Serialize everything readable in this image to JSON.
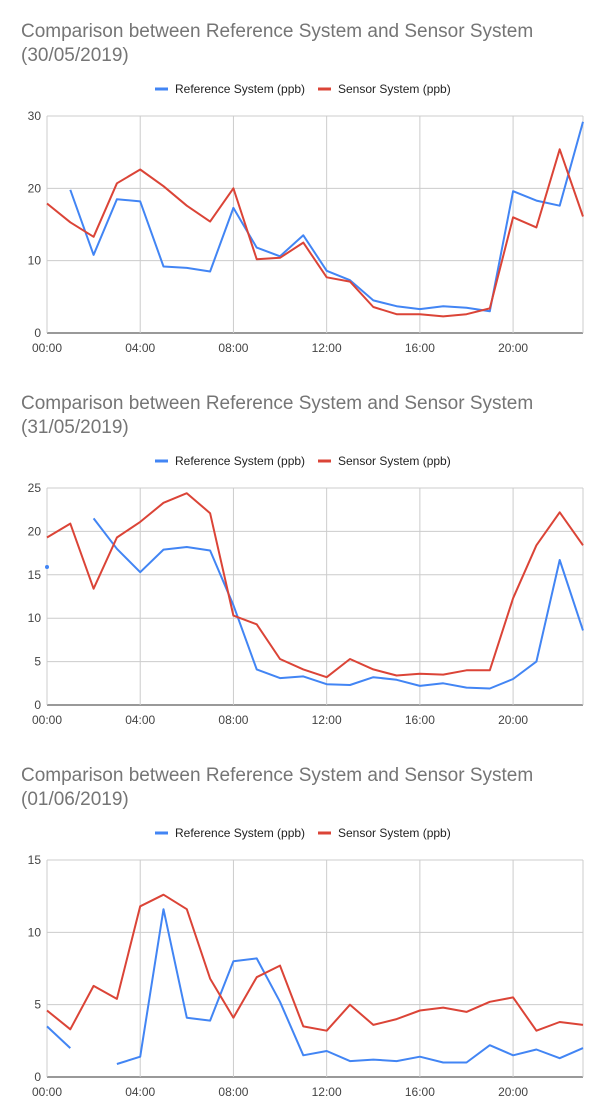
{
  "chart_data": [
    {
      "type": "line",
      "title": "Comparison between  Reference System and Sensor System (30/05/2019)",
      "x": [
        "00:00",
        "01:00",
        "02:00",
        "03:00",
        "04:00",
        "05:00",
        "06:00",
        "07:00",
        "08:00",
        "09:00",
        "10:00",
        "11:00",
        "12:00",
        "13:00",
        "14:00",
        "15:00",
        "16:00",
        "17:00",
        "18:00",
        "19:00",
        "20:00",
        "21:00",
        "22:00",
        "23:00"
      ],
      "x_ticks": [
        "00:00",
        "04:00",
        "08:00",
        "12:00",
        "16:00",
        "20:00"
      ],
      "ylim": [
        0,
        30
      ],
      "y_ticks": [
        0,
        10,
        20,
        30
      ],
      "grid": true,
      "legend_position": "top",
      "series": [
        {
          "name": "Reference System (ppb)",
          "color": "#4285f4",
          "values": [
            null,
            19.8,
            10.8,
            18.5,
            18.2,
            9.2,
            9.0,
            8.5,
            17.3,
            11.8,
            10.6,
            13.5,
            8.6,
            7.3,
            4.5,
            3.7,
            3.3,
            3.7,
            3.5,
            3.0,
            19.6,
            18.3,
            17.6,
            29.2
          ]
        },
        {
          "name": "Sensor System (ppb)",
          "color": "#db4437",
          "values": [
            17.9,
            15.3,
            13.3,
            20.7,
            22.6,
            20.3,
            17.6,
            15.4,
            20.0,
            10.2,
            10.4,
            12.5,
            7.7,
            7.1,
            3.6,
            2.6,
            2.6,
            2.3,
            2.6,
            3.4,
            16.0,
            14.6,
            25.4,
            16.1
          ]
        }
      ]
    },
    {
      "type": "line",
      "title": "Comparison between  Reference System and Sensor System (31/05/2019)",
      "x": [
        "00:00",
        "01:00",
        "02:00",
        "03:00",
        "04:00",
        "05:00",
        "06:00",
        "07:00",
        "08:00",
        "09:00",
        "10:00",
        "11:00",
        "12:00",
        "13:00",
        "14:00",
        "15:00",
        "16:00",
        "17:00",
        "18:00",
        "19:00",
        "20:00",
        "21:00",
        "22:00",
        "23:00"
      ],
      "x_ticks": [
        "00:00",
        "04:00",
        "08:00",
        "12:00",
        "16:00",
        "20:00"
      ],
      "ylim": [
        0,
        25
      ],
      "y_ticks": [
        0,
        5,
        10,
        15,
        20,
        25
      ],
      "grid": true,
      "legend_position": "top",
      "series": [
        {
          "name": "Reference System (ppb)",
          "color": "#4285f4",
          "values": [
            15.9,
            null,
            21.5,
            18.0,
            15.3,
            17.9,
            18.2,
            17.8,
            11.5,
            4.1,
            3.1,
            3.3,
            2.4,
            2.3,
            3.2,
            2.9,
            2.2,
            2.5,
            2.0,
            1.9,
            3.0,
            5.0,
            16.7,
            8.6
          ]
        },
        {
          "name": "Sensor System (ppb)",
          "color": "#db4437",
          "values": [
            19.3,
            20.9,
            13.4,
            19.3,
            21.1,
            23.3,
            24.4,
            22.1,
            10.3,
            9.3,
            5.3,
            4.1,
            3.2,
            5.3,
            4.1,
            3.4,
            3.6,
            3.5,
            4.0,
            4.0,
            12.3,
            18.4,
            22.2,
            18.4
          ]
        }
      ]
    },
    {
      "type": "line",
      "title": "Comparison between  Reference System and Sensor System (01/06/2019)",
      "x": [
        "00:00",
        "01:00",
        "02:00",
        "03:00",
        "04:00",
        "05:00",
        "06:00",
        "07:00",
        "08:00",
        "09:00",
        "10:00",
        "11:00",
        "12:00",
        "13:00",
        "14:00",
        "15:00",
        "16:00",
        "17:00",
        "18:00",
        "19:00",
        "20:00",
        "21:00",
        "22:00",
        "23:00"
      ],
      "x_ticks": [
        "00:00",
        "04:00",
        "08:00",
        "12:00",
        "16:00",
        "20:00"
      ],
      "ylim": [
        0,
        15
      ],
      "y_ticks": [
        0,
        5,
        10,
        15
      ],
      "grid": true,
      "legend_position": "top",
      "series": [
        {
          "name": "Reference System (ppb)",
          "color": "#4285f4",
          "values": [
            3.5,
            2.0,
            null,
            0.9,
            1.4,
            11.6,
            4.1,
            3.9,
            8.0,
            8.2,
            5.2,
            1.5,
            1.8,
            1.1,
            1.2,
            1.1,
            1.4,
            1.0,
            1.0,
            2.2,
            1.5,
            1.9,
            1.3,
            2.0
          ]
        },
        {
          "name": "Sensor System (ppb)",
          "color": "#db4437",
          "values": [
            4.6,
            3.3,
            6.3,
            5.4,
            11.8,
            12.6,
            11.6,
            6.8,
            4.1,
            6.9,
            7.7,
            3.5,
            3.2,
            5.0,
            3.6,
            4.0,
            4.6,
            4.8,
            4.5,
            5.2,
            5.5,
            3.2,
            3.8,
            3.6
          ]
        }
      ]
    }
  ]
}
